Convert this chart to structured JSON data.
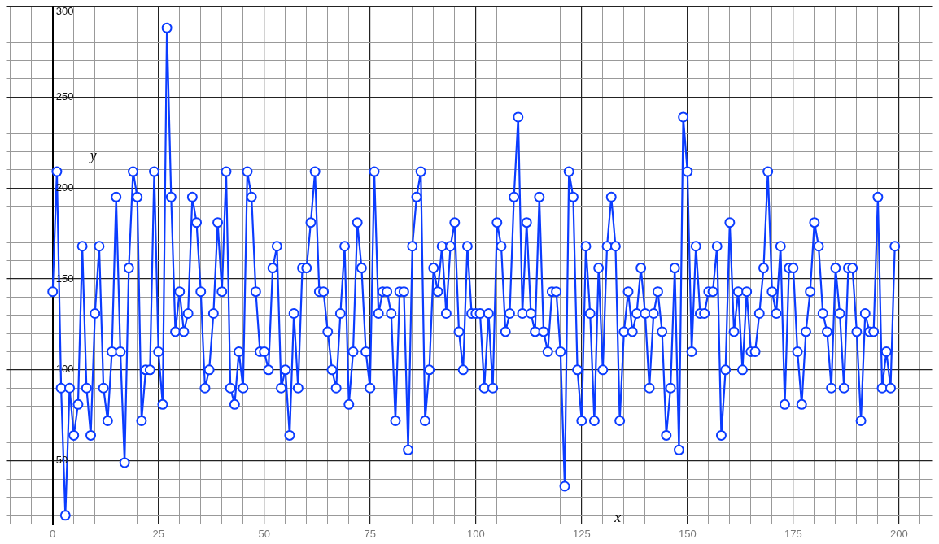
{
  "chart_data": {
    "type": "line",
    "xlabel": "x",
    "ylabel": "y",
    "color": "#0b3cff",
    "marker": "circle",
    "grid": true,
    "legend": false,
    "xlim": [
      -11,
      208
    ],
    "ylim": [
      15,
      300
    ],
    "xticks": [
      {
        "value": -10,
        "label": null
      },
      {
        "value": -5,
        "label": null
      },
      0,
      {
        "value": 5,
        "label": null
      },
      {
        "value": 10,
        "label": null
      },
      {
        "value": 15,
        "label": null
      },
      {
        "value": 20,
        "label": null
      },
      25,
      {
        "value": 30,
        "label": null
      },
      {
        "value": 35,
        "label": null
      },
      {
        "value": 40,
        "label": null
      },
      {
        "value": 45,
        "label": null
      },
      50,
      {
        "value": 55,
        "label": null
      },
      {
        "value": 60,
        "label": null
      },
      {
        "value": 65,
        "label": null
      },
      {
        "value": 70,
        "label": null
      },
      75,
      {
        "value": 80,
        "label": null
      },
      {
        "value": 85,
        "label": null
      },
      {
        "value": 90,
        "label": null
      },
      {
        "value": 95,
        "label": null
      },
      100,
      {
        "value": 105,
        "label": null
      },
      {
        "value": 110,
        "label": null
      },
      {
        "value": 115,
        "label": null
      },
      {
        "value": 120,
        "label": null
      },
      125,
      {
        "value": 130,
        "label": null
      },
      {
        "value": 135,
        "label": null
      },
      {
        "value": 140,
        "label": null
      },
      {
        "value": 145,
        "label": null
      },
      150,
      {
        "value": 155,
        "label": null
      },
      {
        "value": 160,
        "label": null
      },
      {
        "value": 165,
        "label": null
      },
      {
        "value": 170,
        "label": null
      },
      175,
      {
        "value": 180,
        "label": null
      },
      {
        "value": 185,
        "label": null
      },
      {
        "value": 190,
        "label": null
      },
      {
        "value": 195,
        "label": null
      },
      200,
      {
        "value": 205,
        "label": null
      }
    ],
    "yticks": [
      {
        "value": 20,
        "label": null
      },
      {
        "value": 30,
        "label": null
      },
      {
        "value": 40,
        "label": null
      },
      50,
      {
        "value": 60,
        "label": null
      },
      {
        "value": 70,
        "label": null
      },
      {
        "value": 80,
        "label": null
      },
      {
        "value": 90,
        "label": null
      },
      100,
      {
        "value": 110,
        "label": null
      },
      {
        "value": 120,
        "label": null
      },
      {
        "value": 130,
        "label": null
      },
      {
        "value": 140,
        "label": null
      },
      150,
      {
        "value": 160,
        "label": null
      },
      {
        "value": 170,
        "label": null
      },
      {
        "value": 180,
        "label": null
      },
      {
        "value": 190,
        "label": null
      },
      200,
      {
        "value": 210,
        "label": null
      },
      {
        "value": 220,
        "label": null
      },
      {
        "value": 230,
        "label": null
      },
      {
        "value": 240,
        "label": null
      },
      250,
      {
        "value": 260,
        "label": null
      },
      {
        "value": 270,
        "label": null
      },
      {
        "value": 280,
        "label": null
      },
      {
        "value": 290,
        "label": null
      },
      300
    ],
    "x": [
      0,
      1,
      2,
      3,
      4,
      5,
      6,
      7,
      8,
      9,
      10,
      11,
      12,
      13,
      14,
      15,
      16,
      17,
      18,
      19,
      20,
      21,
      22,
      23,
      24,
      25,
      26,
      27,
      28,
      29,
      30,
      31,
      32,
      33,
      34,
      35,
      36,
      37,
      38,
      39,
      40,
      41,
      42,
      43,
      44,
      45,
      46,
      47,
      48,
      49,
      50,
      51,
      52,
      53,
      54,
      55,
      56,
      57,
      58,
      59,
      60,
      61,
      62,
      63,
      64,
      65,
      66,
      67,
      68,
      69,
      70,
      71,
      72,
      73,
      74,
      75,
      76,
      77,
      78,
      79,
      80,
      81,
      82,
      83,
      84,
      85,
      86,
      87,
      88,
      89,
      90,
      91,
      92,
      93,
      94,
      95,
      96,
      97,
      98,
      99,
      100,
      101,
      102,
      103,
      104,
      105,
      106,
      107,
      108,
      109,
      110,
      111,
      112,
      113,
      114,
      115,
      116,
      117,
      118,
      119,
      120,
      121,
      122,
      123,
      124,
      125,
      126,
      127,
      128,
      129,
      130,
      131,
      132,
      133,
      134,
      135,
      136,
      137,
      138,
      139,
      140,
      141,
      142,
      143,
      144,
      145,
      146,
      147,
      148,
      149,
      150,
      151,
      152,
      153,
      154,
      155,
      156,
      157,
      158,
      159,
      160,
      161,
      162,
      163,
      164,
      165,
      166,
      167,
      168,
      169,
      170,
      171,
      172,
      173,
      174,
      175,
      176,
      177,
      178,
      179,
      180,
      181,
      182,
      183,
      184,
      185,
      186,
      187,
      188,
      189,
      190,
      191,
      192,
      193,
      194,
      195,
      196,
      197,
      198,
      199
    ],
    "values": [
      143,
      209,
      90,
      20,
      90,
      64,
      81,
      168,
      90,
      64,
      131,
      168,
      90,
      72,
      110,
      195,
      110,
      49,
      156,
      209,
      195,
      72,
      100,
      100,
      209,
      110,
      81,
      288,
      195,
      121,
      143,
      121,
      131,
      195,
      181,
      143,
      90,
      100,
      131,
      181,
      143,
      209,
      90,
      81,
      110,
      90,
      209,
      195,
      143,
      110,
      110,
      100,
      156,
      168,
      90,
      100,
      64,
      131,
      90,
      156,
      156,
      181,
      209,
      143,
      143,
      121,
      100,
      90,
      131,
      168,
      81,
      110,
      181,
      156,
      110,
      90,
      209,
      131,
      143,
      143,
      131,
      72,
      143,
      143,
      56,
      168,
      195,
      209,
      72,
      100,
      156,
      143,
      168,
      131,
      168,
      181,
      121,
      100,
      168,
      131,
      131,
      131,
      90,
      131,
      90,
      181,
      168,
      121,
      131,
      195,
      239,
      131,
      181,
      131,
      121,
      195,
      121,
      110,
      143,
      143,
      110,
      36,
      209,
      195,
      100,
      72,
      168,
      131,
      72,
      156,
      100,
      168,
      195,
      168,
      72,
      121,
      143,
      121,
      131,
      156,
      131,
      90,
      131,
      143,
      121,
      64,
      90,
      156,
      56,
      239,
      209,
      110,
      168,
      131,
      131,
      143,
      143,
      168,
      64,
      100,
      181,
      121,
      143,
      100,
      143,
      110,
      110,
      131,
      156,
      209,
      143,
      131,
      168,
      81,
      156,
      156,
      110,
      81,
      121,
      143,
      181,
      168,
      131,
      121,
      90,
      156,
      131,
      90,
      156,
      156,
      121,
      72,
      131,
      121,
      121,
      195,
      90,
      110,
      90,
      168
    ]
  }
}
